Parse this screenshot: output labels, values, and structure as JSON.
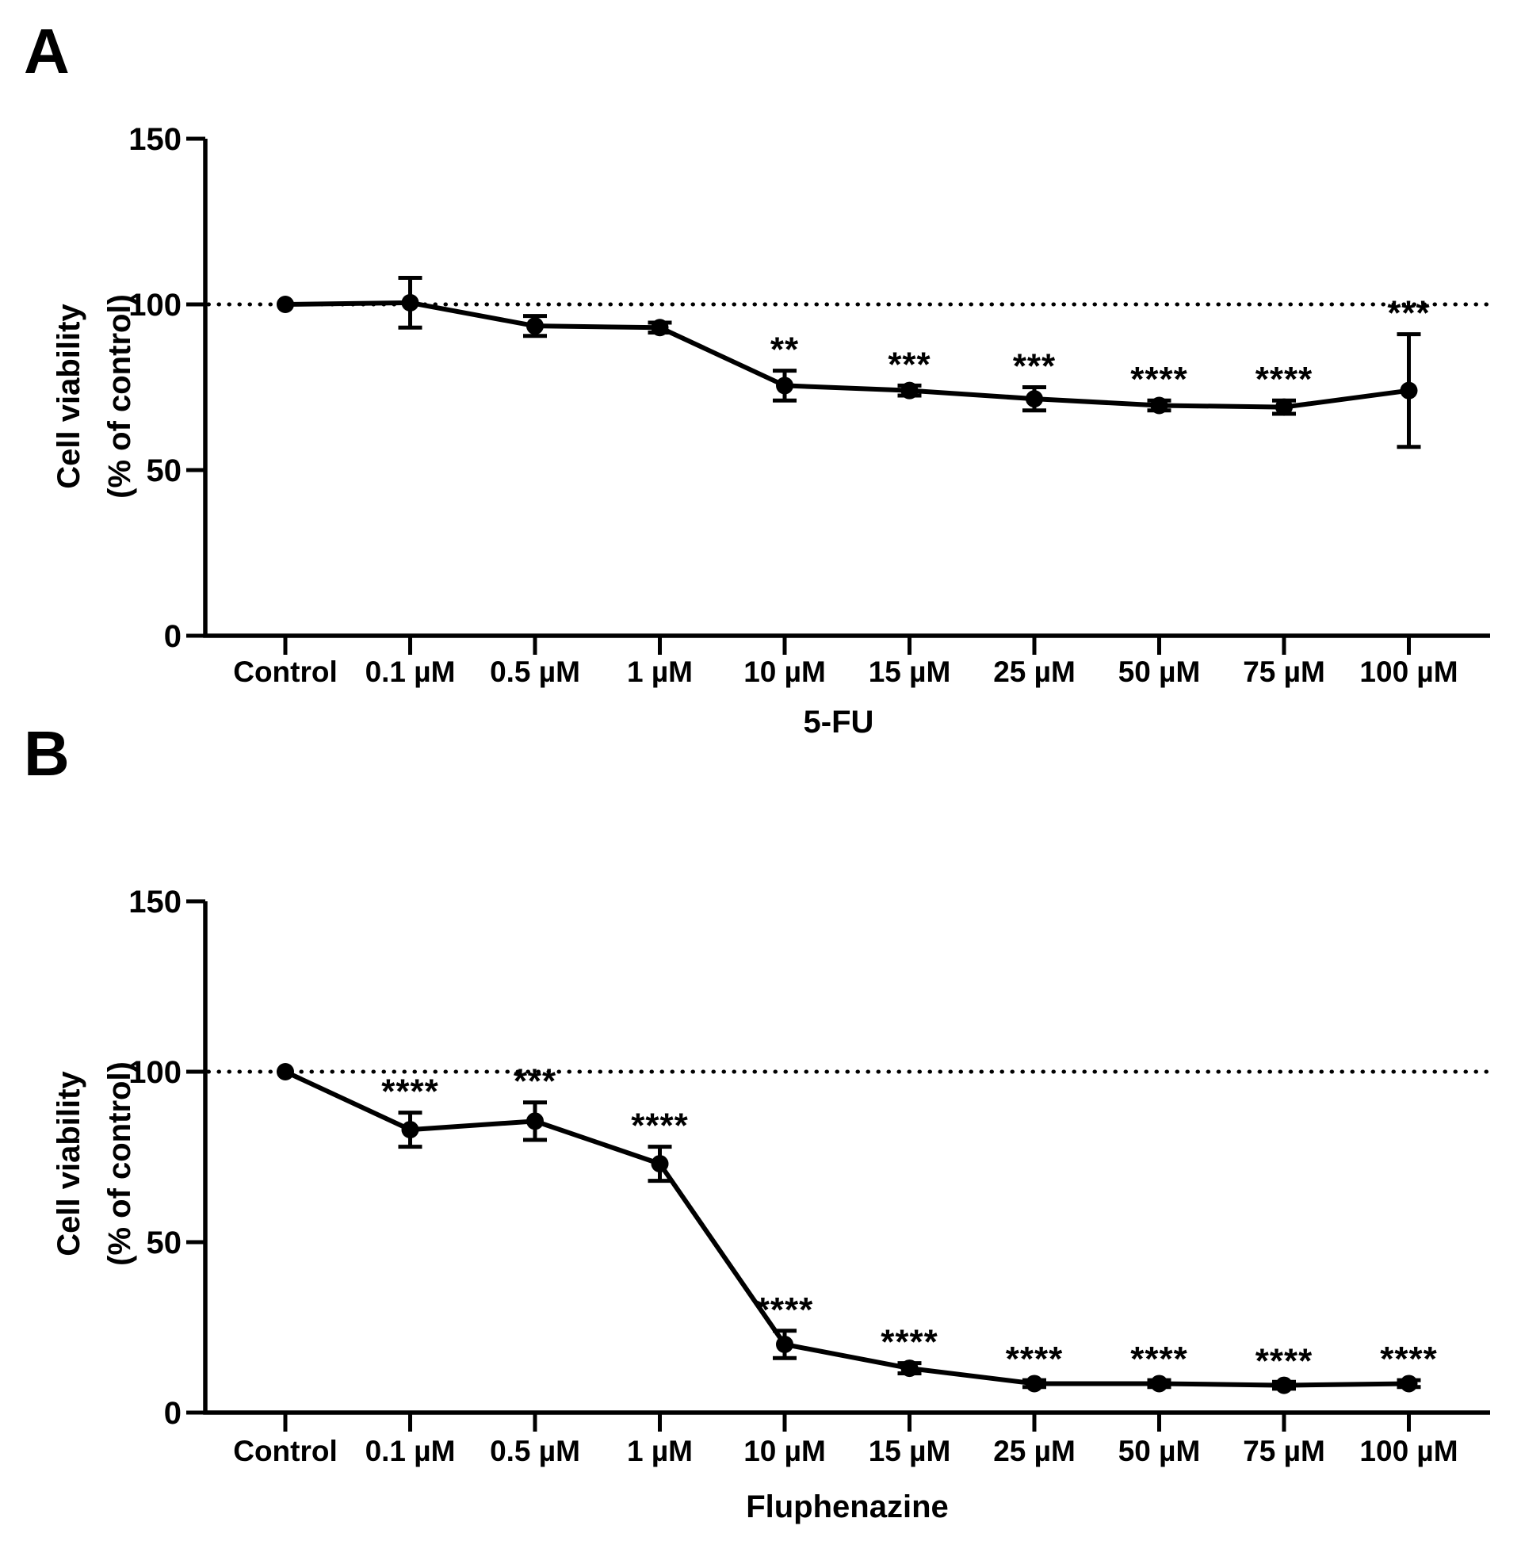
{
  "figure": {
    "background": "#ffffff",
    "ink": "#000000",
    "panels": [
      {
        "label": "A",
        "x_axis_title": "5-FU",
        "y_axis_title_line1": "Cell viability",
        "y_axis_title_line2": "(% of control)"
      },
      {
        "label": "B",
        "x_axis_title": "Fluphenazine",
        "y_axis_title_line1": "Cell viability",
        "y_axis_title_line2": "(% of control)"
      }
    ]
  },
  "chart_data": [
    {
      "type": "line",
      "panel": "A",
      "title": "",
      "xlabel": "5-FU",
      "ylabel": "Cell viability (% of control)",
      "categories": [
        "Control",
        "0.1 µM",
        "0.5 µM",
        "1 µM",
        "10 µM",
        "15 µM",
        "25 µM",
        "50 µM",
        "75 µM",
        "100 µM"
      ],
      "series": [
        {
          "name": "5-FU",
          "marker": "circle",
          "color": "#000000",
          "values": [
            100,
            100.5,
            93.5,
            93,
            75.5,
            74,
            71.5,
            69.5,
            69,
            74
          ],
          "errors": [
            0,
            7.5,
            3,
            1.5,
            4.5,
            1.5,
            3.5,
            1.5,
            2,
            17
          ],
          "significance": [
            "",
            "",
            "",
            "",
            "**",
            "***",
            "***",
            "****",
            "****",
            "***"
          ]
        }
      ],
      "ylim": [
        0,
        150
      ],
      "yticks": [
        0,
        50,
        100,
        150
      ],
      "reference_line_y": 100,
      "reference_line_style": "dotted",
      "grid": false,
      "legend": false
    },
    {
      "type": "line",
      "panel": "B",
      "title": "",
      "xlabel": "Fluphenazine",
      "ylabel": "Cell viability (% of control)",
      "categories": [
        "Control",
        "0.1 µM",
        "0.5 µM",
        "1 µM",
        "10 µM",
        "15 µM",
        "25 µM",
        "50 µM",
        "75 µM",
        "100 µM"
      ],
      "series": [
        {
          "name": "Fluphenazine",
          "marker": "circle",
          "color": "#000000",
          "values": [
            100,
            83,
            85.5,
            73,
            20,
            13,
            8.5,
            8.5,
            8,
            8.5
          ],
          "errors": [
            0,
            5,
            5.5,
            5,
            4,
            1.5,
            1,
            1,
            1,
            1
          ],
          "significance": [
            "",
            "****",
            "***",
            "****",
            "****",
            "****",
            "****",
            "****",
            "****",
            "****"
          ]
        }
      ],
      "ylim": [
        0,
        150
      ],
      "yticks": [
        0,
        50,
        100,
        150
      ],
      "reference_line_y": 100,
      "reference_line_style": "dotted",
      "grid": false,
      "legend": false
    }
  ]
}
